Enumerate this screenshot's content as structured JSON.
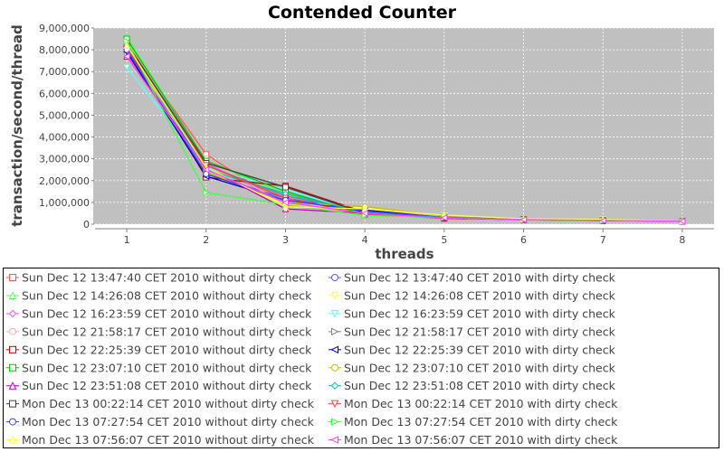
{
  "chart_data": {
    "type": "line",
    "title": "Contended Counter",
    "xlabel": "threads",
    "ylabel": "transaction/second/thread",
    "x": [
      1,
      2,
      3,
      4,
      5,
      6,
      7,
      8
    ],
    "xlim": [
      0.6,
      8.4
    ],
    "ylim": [
      0,
      9000000
    ],
    "yticks": [
      "0",
      "1,000,000",
      "2,000,000",
      "3,000,000",
      "4,000,000",
      "5,000,000",
      "6,000,000",
      "7,000,000",
      "8,000,000",
      "9,000,000"
    ],
    "xticks": [
      "1",
      "2",
      "3",
      "4",
      "5",
      "6",
      "7",
      "8"
    ],
    "grid": true,
    "legend_position": "bottom",
    "plot_background": "#c0c0c0",
    "series": [
      {
        "name": "Sun Dec 12 13:47:40 CET 2010 without dirty check",
        "color": "#ff5555",
        "marker": "square",
        "values": [
          8300000,
          3200000,
          850000,
          480000,
          250000,
          230000,
          170000,
          150000
        ]
      },
      {
        "name": "Sun Dec 12 13:47:40 CET 2010 with dirty check",
        "color": "#5555ff",
        "marker": "circle",
        "values": [
          8000000,
          2300000,
          1200000,
          600000,
          300000,
          220000,
          180000,
          150000
        ]
      },
      {
        "name": "Sun Dec 12 14:26:08 CET 2010 without dirty check",
        "color": "#55ff55",
        "marker": "triangle-up",
        "values": [
          8600000,
          2900000,
          1400000,
          400000,
          350000,
          220000,
          180000,
          140000
        ]
      },
      {
        "name": "Sun Dec 12 14:26:08 CET 2010 with dirty check",
        "color": "#ffff55",
        "marker": "triangle-down",
        "values": [
          8100000,
          2500000,
          900000,
          750000,
          400000,
          240000,
          210000,
          150000
        ]
      },
      {
        "name": "Sun Dec 12 16:23:59 CET 2010 without dirty check",
        "color": "#ff55ff",
        "marker": "diamond",
        "values": [
          7800000,
          2800000,
          1000000,
          500000,
          300000,
          200000,
          170000,
          130000
        ]
      },
      {
        "name": "Sun Dec 12 16:23:59 CET 2010 with dirty check",
        "color": "#55ffff",
        "marker": "triangle-down",
        "values": [
          7200000,
          2600000,
          1600000,
          500000,
          350000,
          210000,
          170000,
          140000
        ]
      },
      {
        "name": "Sun Dec 12 21:58:17 CET 2010 without dirty check",
        "color": "#ffafaf",
        "marker": "circle",
        "values": [
          8400000,
          3000000,
          900000,
          500000,
          300000,
          230000,
          180000,
          140000
        ]
      },
      {
        "name": "Sun Dec 12 21:58:17 CET 2010 with dirty check",
        "color": "#808080",
        "marker": "triangle-right",
        "values": [
          8200000,
          2700000,
          1300000,
          600000,
          320000,
          220000,
          170000,
          140000
        ]
      },
      {
        "name": "Sun Dec 12 22:25:39 CET 2010 without dirty check",
        "color": "#c00000",
        "marker": "square",
        "values": [
          8100000,
          2150000,
          1750000,
          550000,
          280000,
          220000,
          160000,
          140000
        ]
      },
      {
        "name": "Sun Dec 12 22:25:39 CET 2010 with dirty check",
        "color": "#0000c0",
        "marker": "triangle-left",
        "values": [
          7900000,
          2200000,
          1100000,
          650000,
          300000,
          210000,
          170000,
          140000
        ]
      },
      {
        "name": "Sun Dec 12 23:07:10 CET 2010 without dirty check",
        "color": "#00c000",
        "marker": "square",
        "values": [
          8500000,
          2900000,
          1500000,
          450000,
          330000,
          230000,
          180000,
          140000
        ]
      },
      {
        "name": "Sun Dec 12 23:07:10 CET 2010 with dirty check",
        "color": "#c0c000",
        "marker": "circle",
        "values": [
          8000000,
          2400000,
          1000000,
          800000,
          380000,
          240000,
          200000,
          150000
        ]
      },
      {
        "name": "Sun Dec 12 23:51:08 CET 2010 without dirty check",
        "color": "#c000c0",
        "marker": "triangle-up",
        "values": [
          7700000,
          2600000,
          700000,
          500000,
          280000,
          200000,
          160000,
          130000
        ]
      },
      {
        "name": "Sun Dec 12 23:51:08 CET 2010 with dirty check",
        "color": "#00c0c0",
        "marker": "diamond",
        "values": [
          8200000,
          2500000,
          1400000,
          550000,
          320000,
          220000,
          170000,
          140000
        ]
      },
      {
        "name": "Mon Dec 13 00:22:14 CET 2010 without dirty check",
        "color": "#404040",
        "marker": "square",
        "values": [
          8300000,
          2800000,
          1700000,
          500000,
          300000,
          220000,
          170000,
          140000
        ]
      },
      {
        "name": "Mon Dec 13 00:22:14 CET 2010 with dirty check",
        "color": "#ff4040",
        "marker": "triangle-down",
        "values": [
          8100000,
          2700000,
          1200000,
          450000,
          300000,
          210000,
          170000,
          140000
        ]
      },
      {
        "name": "Mon Dec 13 07:27:54 CET 2010 without dirty check",
        "color": "#4040ff",
        "marker": "circle",
        "values": [
          8000000,
          2300000,
          1100000,
          600000,
          310000,
          220000,
          170000,
          140000
        ]
      },
      {
        "name": "Mon Dec 13 07:27:54 CET 2010 with dirty check",
        "color": "#40ff40",
        "marker": "triangle-right",
        "values": [
          8400000,
          1450000,
          900000,
          400000,
          300000,
          200000,
          160000,
          130000
        ]
      },
      {
        "name": "Mon Dec 13 07:56:07 CET 2010 without dirty check",
        "color": "#ffff40",
        "marker": "triangle-up",
        "values": [
          8200000,
          2600000,
          800000,
          700000,
          420000,
          250000,
          220000,
          150000
        ]
      },
      {
        "name": "Mon Dec 13 07:56:07 CET 2010 with dirty check",
        "color": "#ff40ff",
        "marker": "triangle-left",
        "values": [
          7700000,
          2500000,
          1000000,
          500000,
          300000,
          210000,
          170000,
          140000
        ]
      }
    ]
  }
}
